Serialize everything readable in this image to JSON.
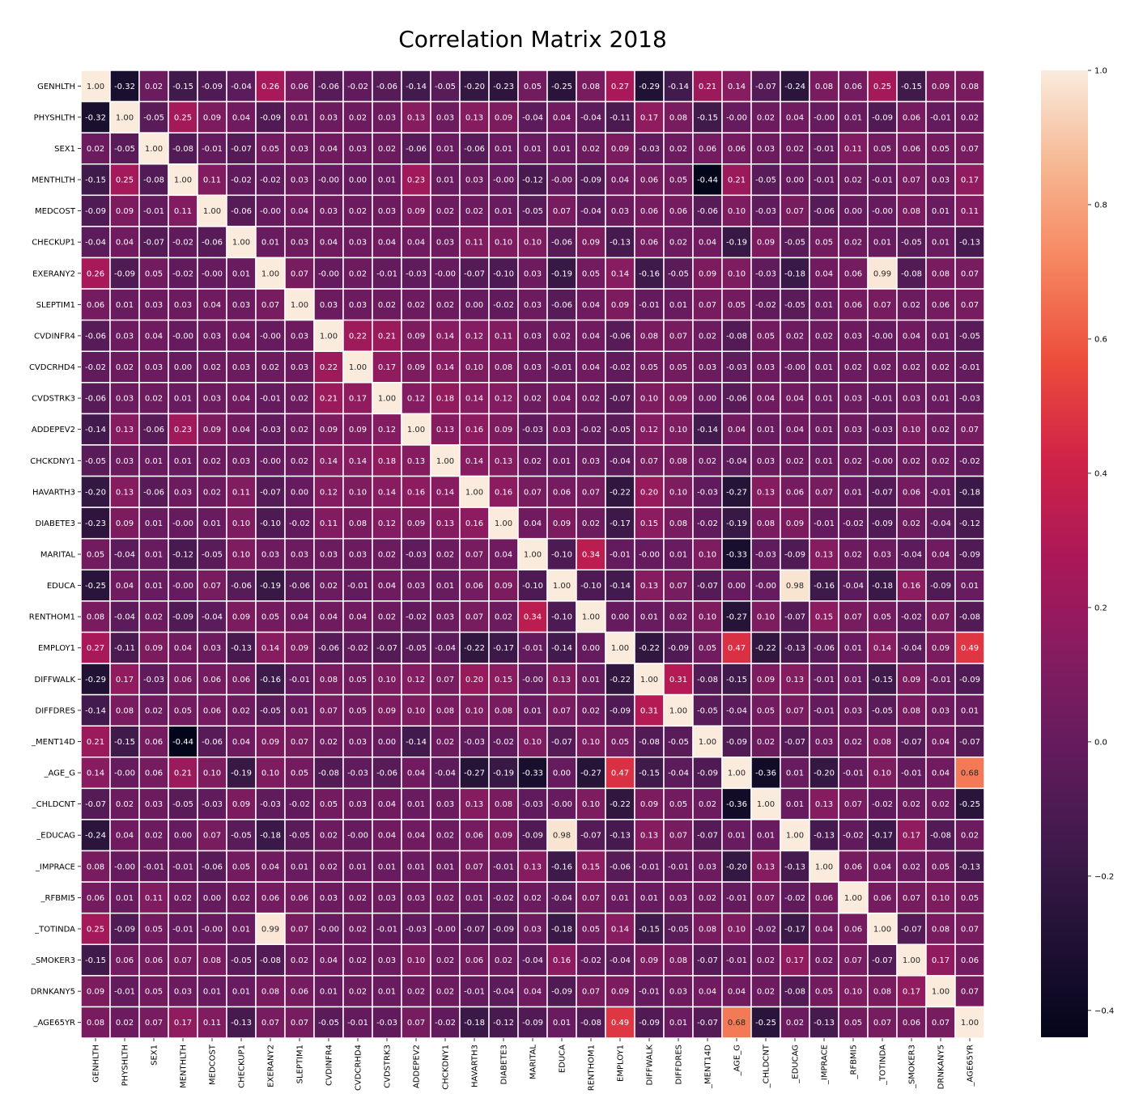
{
  "chart_data": {
    "type": "heatmap",
    "title": "Correlation Matrix 2018",
    "labels": [
      "GENHLTH",
      "PHYSHLTH",
      "SEX1",
      "MENTHLTH",
      "MEDCOST",
      "CHECKUP1",
      "EXERANY2",
      "SLEPTIM1",
      "CVDINFR4",
      "CVDCRHD4",
      "CVDSTRK3",
      "ADDEPEV2",
      "CHCKDNY1",
      "HAVARTH3",
      "DIABETE3",
      "MARITAL",
      "EDUCA",
      "RENTHOM1",
      "EMPLOY1",
      "DIFFWALK",
      "DIFFDRES",
      "_MENT14D",
      "_AGE_G",
      "_CHLDCNT",
      "_EDUCAG",
      "_IMPRACE",
      "_RFBMI5",
      "_TOTINDA",
      "_SMOKER3",
      "DRNKANY5",
      "_AGE65YR"
    ],
    "matrix": [
      [
        1.0,
        -0.32,
        0.02,
        -0.15,
        -0.09,
        -0.04,
        0.26,
        0.06,
        -0.06,
        -0.02,
        -0.06,
        -0.14,
        -0.05,
        -0.2,
        -0.23,
        0.05,
        -0.25,
        0.08,
        0.27,
        -0.29,
        -0.14,
        0.21,
        0.14,
        -0.07,
        -0.24,
        0.08,
        0.06,
        0.25,
        -0.15,
        0.09,
        0.08
      ],
      [
        -0.32,
        1.0,
        -0.05,
        0.25,
        0.09,
        0.04,
        -0.09,
        0.01,
        0.03,
        0.02,
        0.03,
        0.13,
        0.03,
        0.13,
        0.09,
        -0.04,
        0.04,
        -0.04,
        -0.11,
        0.17,
        0.08,
        -0.15,
        -0.0,
        0.02,
        0.04,
        -0.0,
        0.01,
        -0.09,
        0.06,
        -0.01,
        0.02
      ],
      [
        0.02,
        -0.05,
        1.0,
        -0.08,
        -0.01,
        -0.07,
        0.05,
        0.03,
        0.04,
        0.03,
        0.02,
        -0.06,
        0.01,
        -0.06,
        0.01,
        0.01,
        0.01,
        0.02,
        0.09,
        -0.03,
        0.02,
        0.06,
        0.06,
        0.03,
        0.02,
        -0.01,
        0.11,
        0.05,
        0.06,
        0.05,
        0.07
      ],
      [
        -0.15,
        0.25,
        -0.08,
        1.0,
        0.11,
        -0.02,
        -0.02,
        0.03,
        -0.0,
        0.0,
        0.01,
        0.23,
        0.01,
        0.03,
        -0.0,
        -0.12,
        -0.0,
        -0.09,
        0.04,
        0.06,
        0.05,
        -0.44,
        0.21,
        -0.05,
        0.0,
        -0.01,
        0.02,
        -0.01,
        0.07,
        0.03,
        0.17
      ],
      [
        -0.09,
        0.09,
        -0.01,
        0.11,
        1.0,
        -0.06,
        -0.0,
        0.04,
        0.03,
        0.02,
        0.03,
        0.09,
        0.02,
        0.02,
        0.01,
        -0.05,
        0.07,
        -0.04,
        0.03,
        0.06,
        0.06,
        -0.06,
        0.1,
        -0.03,
        0.07,
        -0.06,
        0.0,
        -0.0,
        0.08,
        0.01,
        0.11
      ],
      [
        -0.04,
        0.04,
        -0.07,
        -0.02,
        -0.06,
        1.0,
        0.01,
        0.03,
        0.04,
        0.03,
        0.04,
        0.04,
        0.03,
        0.11,
        0.1,
        0.1,
        -0.06,
        0.09,
        -0.13,
        0.06,
        0.02,
        0.04,
        -0.19,
        0.09,
        -0.05,
        0.05,
        0.02,
        0.01,
        -0.05,
        0.01,
        -0.13
      ],
      [
        0.26,
        -0.09,
        0.05,
        -0.02,
        -0.0,
        0.01,
        1.0,
        0.07,
        -0.0,
        0.02,
        -0.01,
        -0.03,
        -0.0,
        -0.07,
        -0.1,
        0.03,
        -0.19,
        0.05,
        0.14,
        -0.16,
        -0.05,
        0.09,
        0.1,
        -0.03,
        -0.18,
        0.04,
        0.06,
        0.99,
        -0.08,
        0.08,
        0.07
      ],
      [
        0.06,
        0.01,
        0.03,
        0.03,
        0.04,
        0.03,
        0.07,
        1.0,
        0.03,
        0.03,
        0.02,
        0.02,
        0.02,
        0.0,
        -0.02,
        0.03,
        -0.06,
        0.04,
        0.09,
        -0.01,
        0.01,
        0.07,
        0.05,
        -0.02,
        -0.05,
        0.01,
        0.06,
        0.07,
        0.02,
        0.06,
        0.07
      ],
      [
        -0.06,
        0.03,
        0.04,
        -0.0,
        0.03,
        0.04,
        -0.0,
        0.03,
        1.0,
        0.22,
        0.21,
        0.09,
        0.14,
        0.12,
        0.11,
        0.03,
        0.02,
        0.04,
        -0.06,
        0.08,
        0.07,
        0.02,
        -0.08,
        0.05,
        0.02,
        0.02,
        0.03,
        -0.0,
        0.04,
        0.01,
        -0.05
      ],
      [
        -0.02,
        0.02,
        0.03,
        0.0,
        0.02,
        0.03,
        0.02,
        0.03,
        0.22,
        1.0,
        0.17,
        0.09,
        0.14,
        0.1,
        0.08,
        0.03,
        -0.01,
        0.04,
        -0.02,
        0.05,
        0.05,
        0.03,
        -0.03,
        0.03,
        -0.0,
        0.01,
        0.02,
        0.02,
        0.02,
        0.02,
        -0.01
      ],
      [
        -0.06,
        0.03,
        0.02,
        0.01,
        0.03,
        0.04,
        -0.01,
        0.02,
        0.21,
        0.17,
        1.0,
        0.12,
        0.18,
        0.14,
        0.12,
        0.02,
        0.04,
        0.02,
        -0.07,
        0.1,
        0.09,
        0.0,
        -0.06,
        0.04,
        0.04,
        0.01,
        0.03,
        -0.01,
        0.03,
        0.01,
        -0.03
      ],
      [
        -0.14,
        0.13,
        -0.06,
        0.23,
        0.09,
        0.04,
        -0.03,
        0.02,
        0.09,
        0.09,
        0.12,
        1.0,
        0.13,
        0.16,
        0.09,
        -0.03,
        0.03,
        -0.02,
        -0.05,
        0.12,
        0.1,
        -0.14,
        0.04,
        0.01,
        0.04,
        0.01,
        0.03,
        -0.03,
        0.1,
        0.02,
        0.07
      ],
      [
        -0.05,
        0.03,
        0.01,
        0.01,
        0.02,
        0.03,
        -0.0,
        0.02,
        0.14,
        0.14,
        0.18,
        0.13,
        1.0,
        0.14,
        0.13,
        0.02,
        0.01,
        0.03,
        -0.04,
        0.07,
        0.08,
        0.02,
        -0.04,
        0.03,
        0.02,
        0.01,
        0.02,
        -0.0,
        0.02,
        0.02,
        -0.02
      ],
      [
        -0.2,
        0.13,
        -0.06,
        0.03,
        0.02,
        0.11,
        -0.07,
        0.0,
        0.12,
        0.1,
        0.14,
        0.16,
        0.14,
        1.0,
        0.16,
        0.07,
        0.06,
        0.07,
        -0.22,
        0.2,
        0.1,
        -0.03,
        -0.27,
        0.13,
        0.06,
        0.07,
        0.01,
        -0.07,
        0.06,
        -0.01,
        -0.18
      ],
      [
        -0.23,
        0.09,
        0.01,
        -0.0,
        0.01,
        0.1,
        -0.1,
        -0.02,
        0.11,
        0.08,
        0.12,
        0.09,
        0.13,
        0.16,
        1.0,
        0.04,
        0.09,
        0.02,
        -0.17,
        0.15,
        0.08,
        -0.02,
        -0.19,
        0.08,
        0.09,
        -0.01,
        -0.02,
        -0.09,
        0.02,
        -0.04,
        -0.12
      ],
      [
        0.05,
        -0.04,
        0.01,
        -0.12,
        -0.05,
        0.1,
        0.03,
        0.03,
        0.03,
        0.03,
        0.02,
        -0.03,
        0.02,
        0.07,
        0.04,
        1.0,
        -0.1,
        0.34,
        -0.01,
        -0.0,
        0.01,
        0.1,
        -0.33,
        -0.03,
        -0.09,
        0.13,
        0.02,
        0.03,
        -0.04,
        0.04,
        -0.09
      ],
      [
        -0.25,
        0.04,
        0.01,
        -0.0,
        0.07,
        -0.06,
        -0.19,
        -0.06,
        0.02,
        -0.01,
        0.04,
        0.03,
        0.01,
        0.06,
        0.09,
        -0.1,
        1.0,
        -0.1,
        -0.14,
        0.13,
        0.07,
        -0.07,
        0.0,
        -0.0,
        0.98,
        -0.16,
        -0.04,
        -0.18,
        0.16,
        -0.09,
        0.01
      ],
      [
        0.08,
        -0.04,
        0.02,
        -0.09,
        -0.04,
        0.09,
        0.05,
        0.04,
        0.04,
        0.04,
        0.02,
        -0.02,
        0.03,
        0.07,
        0.02,
        0.34,
        -0.1,
        1.0,
        0.0,
        0.01,
        0.02,
        0.1,
        -0.27,
        0.1,
        -0.07,
        0.15,
        0.07,
        0.05,
        -0.02,
        0.07,
        -0.08
      ],
      [
        0.27,
        -0.11,
        0.09,
        0.04,
        0.03,
        -0.13,
        0.14,
        0.09,
        -0.06,
        -0.02,
        -0.07,
        -0.05,
        -0.04,
        -0.22,
        -0.17,
        -0.01,
        -0.14,
        0.0,
        1.0,
        -0.22,
        -0.09,
        0.05,
        0.47,
        -0.22,
        -0.13,
        -0.06,
        0.01,
        0.14,
        -0.04,
        0.09,
        0.49
      ],
      [
        -0.29,
        0.17,
        -0.03,
        0.06,
        0.06,
        0.06,
        -0.16,
        -0.01,
        0.08,
        0.05,
        0.1,
        0.12,
        0.07,
        0.2,
        0.15,
        -0.0,
        0.13,
        0.01,
        -0.22,
        1.0,
        0.31,
        -0.08,
        -0.15,
        0.09,
        0.13,
        -0.01,
        0.01,
        -0.15,
        0.09,
        -0.01,
        -0.09
      ],
      [
        -0.14,
        0.08,
        0.02,
        0.05,
        0.06,
        0.02,
        -0.05,
        0.01,
        0.07,
        0.05,
        0.09,
        0.1,
        0.08,
        0.1,
        0.08,
        0.01,
        0.07,
        0.02,
        -0.09,
        0.31,
        1.0,
        -0.05,
        -0.04,
        0.05,
        0.07,
        -0.01,
        0.03,
        -0.05,
        0.08,
        0.03,
        0.01
      ],
      [
        0.21,
        -0.15,
        0.06,
        -0.44,
        -0.06,
        0.04,
        0.09,
        0.07,
        0.02,
        0.03,
        0.0,
        -0.14,
        0.02,
        -0.03,
        -0.02,
        0.1,
        -0.07,
        0.1,
        0.05,
        -0.08,
        -0.05,
        1.0,
        -0.09,
        0.02,
        -0.07,
        0.03,
        0.02,
        0.08,
        -0.07,
        0.04,
        -0.07
      ],
      [
        0.14,
        -0.0,
        0.06,
        0.21,
        0.1,
        -0.19,
        0.1,
        0.05,
        -0.08,
        -0.03,
        -0.06,
        0.04,
        -0.04,
        -0.27,
        -0.19,
        -0.33,
        0.0,
        -0.27,
        0.47,
        -0.15,
        -0.04,
        -0.09,
        1.0,
        -0.36,
        0.01,
        -0.2,
        -0.01,
        0.1,
        -0.01,
        0.04,
        0.68
      ],
      [
        -0.07,
        0.02,
        0.03,
        -0.05,
        -0.03,
        0.09,
        -0.03,
        -0.02,
        0.05,
        0.03,
        0.04,
        0.01,
        0.03,
        0.13,
        0.08,
        -0.03,
        -0.0,
        0.1,
        -0.22,
        0.09,
        0.05,
        0.02,
        -0.36,
        1.0,
        0.01,
        0.13,
        0.07,
        -0.02,
        0.02,
        0.02,
        -0.25
      ],
      [
        -0.24,
        0.04,
        0.02,
        0.0,
        0.07,
        -0.05,
        -0.18,
        -0.05,
        0.02,
        -0.0,
        0.04,
        0.04,
        0.02,
        0.06,
        0.09,
        -0.09,
        0.98,
        -0.07,
        -0.13,
        0.13,
        0.07,
        -0.07,
        0.01,
        0.01,
        1.0,
        -0.13,
        -0.02,
        -0.17,
        0.17,
        -0.08,
        0.02
      ],
      [
        0.08,
        -0.0,
        -0.01,
        -0.01,
        -0.06,
        0.05,
        0.04,
        0.01,
        0.02,
        0.01,
        0.01,
        0.01,
        0.01,
        0.07,
        -0.01,
        0.13,
        -0.16,
        0.15,
        -0.06,
        -0.01,
        -0.01,
        0.03,
        -0.2,
        0.13,
        -0.13,
        1.0,
        0.06,
        0.04,
        0.02,
        0.05,
        -0.13
      ],
      [
        0.06,
        0.01,
        0.11,
        0.02,
        0.0,
        0.02,
        0.06,
        0.06,
        0.03,
        0.02,
        0.03,
        0.03,
        0.02,
        0.01,
        -0.02,
        0.02,
        -0.04,
        0.07,
        0.01,
        0.01,
        0.03,
        0.02,
        -0.01,
        0.07,
        -0.02,
        0.06,
        1.0,
        0.06,
        0.07,
        0.1,
        0.05
      ],
      [
        0.25,
        -0.09,
        0.05,
        -0.01,
        -0.0,
        0.01,
        0.99,
        0.07,
        -0.0,
        0.02,
        -0.01,
        -0.03,
        -0.0,
        -0.07,
        -0.09,
        0.03,
        -0.18,
        0.05,
        0.14,
        -0.15,
        -0.05,
        0.08,
        0.1,
        -0.02,
        -0.17,
        0.04,
        0.06,
        1.0,
        -0.07,
        0.08,
        0.07
      ],
      [
        -0.15,
        0.06,
        0.06,
        0.07,
        0.08,
        -0.05,
        -0.08,
        0.02,
        0.04,
        0.02,
        0.03,
        0.1,
        0.02,
        0.06,
        0.02,
        -0.04,
        0.16,
        -0.02,
        -0.04,
        0.09,
        0.08,
        -0.07,
        -0.01,
        0.02,
        0.17,
        0.02,
        0.07,
        -0.07,
        1.0,
        0.17,
        0.06
      ],
      [
        0.09,
        -0.01,
        0.05,
        0.03,
        0.01,
        0.01,
        0.08,
        0.06,
        0.01,
        0.02,
        0.01,
        0.02,
        0.02,
        -0.01,
        -0.04,
        0.04,
        -0.09,
        0.07,
        0.09,
        -0.01,
        0.03,
        0.04,
        0.04,
        0.02,
        -0.08,
        0.05,
        0.1,
        0.08,
        0.17,
        1.0,
        0.07
      ],
      [
        0.08,
        0.02,
        0.07,
        0.17,
        0.11,
        -0.13,
        0.07,
        0.07,
        -0.05,
        -0.01,
        -0.03,
        0.07,
        -0.02,
        -0.18,
        -0.12,
        -0.09,
        0.01,
        -0.08,
        0.49,
        -0.09,
        0.01,
        -0.07,
        0.68,
        -0.25,
        0.02,
        -0.13,
        0.05,
        0.07,
        0.06,
        0.07,
        1.0
      ]
    ],
    "colorbar": {
      "ticks": [
        1.0,
        0.8,
        0.6,
        0.4,
        0.2,
        0.0,
        -0.2,
        -0.4
      ],
      "tick_labels": [
        "1.0",
        "0.8",
        "0.6",
        "0.4",
        "0.2",
        "0.0",
        "−0.2",
        "−0.4"
      ],
      "vmin": -0.44,
      "vmax": 1.0,
      "colormap": "rocket"
    },
    "annotations_format": "0.00",
    "grid_line_color": "#ffffff"
  }
}
